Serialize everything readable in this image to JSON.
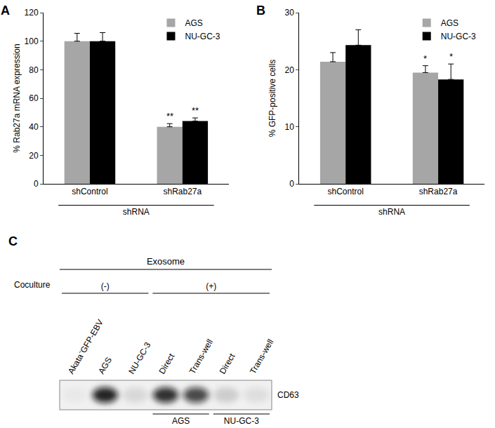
{
  "chart_data": [
    {
      "type": "bar",
      "panel": "A",
      "categories": [
        "shControl",
        "shRab27a"
      ],
      "xlabel": "shRNA",
      "ylabel": "% Rab27a mRNA expression",
      "ylim": [
        0,
        120
      ],
      "yticks": [
        0,
        20,
        40,
        60,
        80,
        100,
        120
      ],
      "legend": "upper right",
      "series": [
        {
          "name": "AGS",
          "color": "#a6a6a6",
          "values": [
            100,
            40
          ],
          "errors": [
            5.5,
            2.2
          ],
          "significance": [
            null,
            "**"
          ]
        },
        {
          "name": "NU-GC-3",
          "color": "#000000",
          "values": [
            100,
            44
          ],
          "errors": [
            6,
            2.2
          ],
          "significance": [
            null,
            "**"
          ]
        }
      ]
    },
    {
      "type": "bar",
      "panel": "B",
      "categories": [
        "shControl",
        "shRab27a"
      ],
      "xlabel": "shRNA",
      "ylabel": "% GFP-positive cells",
      "ylim": [
        0,
        30
      ],
      "yticks": [
        0,
        10,
        20,
        30
      ],
      "legend": "upper right",
      "series": [
        {
          "name": "AGS",
          "color": "#a6a6a6",
          "values": [
            21.4,
            19.5
          ],
          "errors": [
            1.6,
            1.2
          ],
          "significance": [
            null,
            "*"
          ]
        },
        {
          "name": "NU-GC-3",
          "color": "#000000",
          "values": [
            24.3,
            18.3
          ],
          "errors": [
            2.7,
            2.7
          ],
          "significance": [
            null,
            "*"
          ]
        }
      ]
    }
  ],
  "blot": {
    "panel": "C",
    "header": "Exosome",
    "row_label": "Coculture",
    "groups": [
      {
        "label": "(-)",
        "lanes": [
          0,
          2
        ]
      },
      {
        "label": "(+)",
        "lanes": [
          3,
          6
        ]
      }
    ],
    "lanes": [
      "Akata⁻GFP-EBV",
      "AGS",
      "NU-GC-3",
      "Direct",
      "Trans-well",
      "Direct",
      "Trans-well"
    ],
    "subgroups": [
      {
        "label": "AGS",
        "lanes": [
          3,
          4
        ]
      },
      {
        "label": "NU-GC-3",
        "lanes": [
          5,
          6
        ]
      }
    ],
    "band": "CD63",
    "band_intensity": [
      0.03,
      0.9,
      0.1,
      0.85,
      0.75,
      0.15,
      0.08
    ]
  }
}
